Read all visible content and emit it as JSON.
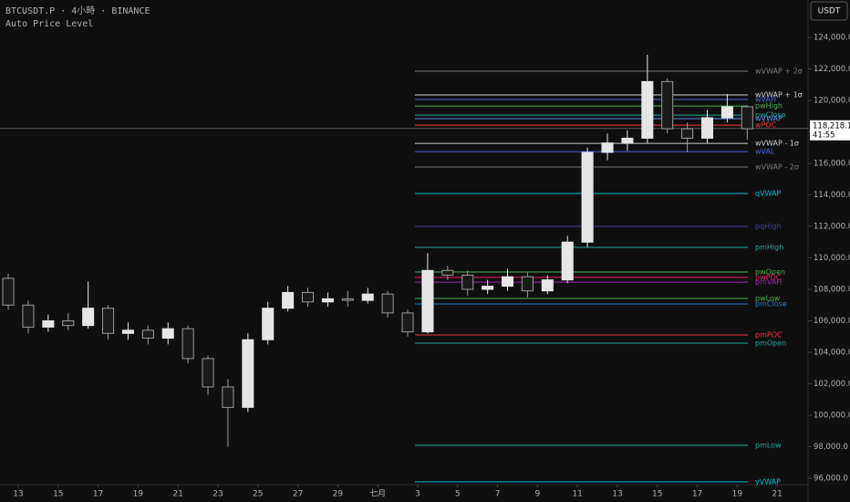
{
  "chart_data": {
    "type": "candlestick",
    "title": "BTCUSDT.P · 4小時 · BINANCE",
    "subtitle": "Auto Price Level",
    "currency": "USDT",
    "up_color": "#e6e6e6",
    "down_color": "#9a9a9a",
    "x": [
      -0.5,
      0.5,
      1.5,
      2.5,
      3.5,
      4.5,
      5.5,
      6.5,
      7.5,
      8.5,
      9.5,
      10.5,
      11.5,
      12.5,
      13.5,
      14.5,
      15.5,
      16.5,
      17.5,
      18.5,
      19.5,
      20.5,
      21.5,
      22.5,
      23.5,
      24.5,
      25.5,
      26.5,
      27.5,
      28.5,
      29.5,
      30.5,
      31.5,
      32.5,
      33.5,
      34.5,
      35.5,
      36.5
    ],
    "series": {
      "open": [
        108700,
        107000,
        105600,
        106000,
        105700,
        106800,
        105200,
        105400,
        104900,
        105500,
        103600,
        101800,
        100500,
        104800,
        106800,
        107800,
        107200,
        107400,
        107300,
        107700,
        106500,
        105300,
        109200,
        108900,
        108000,
        108200,
        108800,
        107900,
        108600,
        111000,
        116700,
        117300,
        117600,
        121200,
        118200,
        117600,
        118900,
        119600
      ],
      "high": [
        109000,
        107300,
        106400,
        106500,
        108500,
        107000,
        105900,
        105700,
        105900,
        105700,
        103800,
        102300,
        105200,
        107200,
        108200,
        108100,
        107800,
        107900,
        108100,
        107900,
        106700,
        110300,
        109500,
        109200,
        108600,
        109300,
        109100,
        108900,
        111400,
        117000,
        117900,
        118100,
        122900,
        121400,
        118600,
        119400,
        120400,
        119700
      ],
      "low": [
        106700,
        105200,
        105300,
        105400,
        105500,
        104800,
        104800,
        104500,
        104500,
        103300,
        101300,
        98000,
        100200,
        104500,
        106600,
        106900,
        106900,
        106900,
        107100,
        106200,
        105000,
        105200,
        108600,
        107600,
        107700,
        107900,
        107500,
        107700,
        108400,
        110700,
        116200,
        116800,
        117300,
        117900,
        116700,
        117300,
        118600,
        117500
      ],
      "close": [
        107000,
        105600,
        106000,
        105700,
        106800,
        105200,
        105400,
        104900,
        105500,
        103600,
        101800,
        100500,
        104800,
        106800,
        107800,
        107200,
        107400,
        107300,
        107700,
        106500,
        105300,
        109200,
        108900,
        108000,
        108200,
        108800,
        107900,
        108600,
        111000,
        116700,
        117300,
        117600,
        121200,
        118200,
        117600,
        118900,
        119600,
        118200
      ]
    },
    "levels": [
      {
        "name": "wVWAP + 2σ",
        "value": 121855,
        "color": "#7a7a7a"
      },
      {
        "name": "wVWAP + 1σ",
        "value": 120350,
        "color": "#d0d0d0"
      },
      {
        "name": "wVAH",
        "value": 120060,
        "color": "#4a64d8"
      },
      {
        "name": "pwHigh",
        "value": 119650,
        "color": "#4caf50"
      },
      {
        "name": "pwClose",
        "value": 119070,
        "color": "#26a69a"
      },
      {
        "name": "wVWAP",
        "value": 118840,
        "color": "#5b8def"
      },
      {
        "name": "wPOC",
        "value": 118430,
        "color": "#f23645"
      },
      {
        "name": "wVWAP - 1σ",
        "value": 117270,
        "color": "#d0d0d0"
      },
      {
        "name": "wVAL",
        "value": 116750,
        "color": "#4a64d8"
      },
      {
        "name": "wVWAP - 2σ",
        "value": 115770,
        "color": "#7a7a7a"
      },
      {
        "name": "qVWAP",
        "value": 114090,
        "color": "#00bcd4"
      },
      {
        "name": "pqHigh",
        "value": 112000,
        "color": "#3f3f9f"
      },
      {
        "name": "pmHigh",
        "value": 110670,
        "color": "#26a69a"
      },
      {
        "name": "pwOpen",
        "value": 109100,
        "color": "#4caf50"
      },
      {
        "name": "pwPOC",
        "value": 108760,
        "color": "#e91e63"
      },
      {
        "name": "pmVAH",
        "value": 108460,
        "color": "#9c27b0"
      },
      {
        "name": "pwLow",
        "value": 107420,
        "color": "#4caf50"
      },
      {
        "name": "pmClose",
        "value": 107070,
        "color": "#2979c9"
      },
      {
        "name": "pmPOC",
        "value": 105100,
        "color": "#f23645"
      },
      {
        "name": "pmOpen",
        "value": 104580,
        "color": "#26a69a"
      },
      {
        "name": "pmLow",
        "value": 98090,
        "color": "#26a69a"
      },
      {
        "name": "yVWAP",
        "value": 95770,
        "color": "#00bcd4"
      }
    ],
    "last_price": {
      "value": 118218.1,
      "label": "118,218.1",
      "countdown": "41:55"
    },
    "xlim": [
      -0.913,
      39.5
    ],
    "xticks": [
      {
        "value": 0,
        "label": "13"
      },
      {
        "value": 2,
        "label": "15"
      },
      {
        "value": 4,
        "label": "17"
      },
      {
        "value": 6,
        "label": "19"
      },
      {
        "value": 8,
        "label": "21"
      },
      {
        "value": 10,
        "label": "23"
      },
      {
        "value": 12,
        "label": "25"
      },
      {
        "value": 14,
        "label": "27"
      },
      {
        "value": 16,
        "label": "29"
      },
      {
        "value": 18,
        "label": "七月"
      },
      {
        "value": 20,
        "label": "3"
      },
      {
        "value": 22,
        "label": "5"
      },
      {
        "value": 24,
        "label": "7"
      },
      {
        "value": 26,
        "label": "9"
      },
      {
        "value": 28,
        "label": "11"
      },
      {
        "value": 30,
        "label": "13"
      },
      {
        "value": 32,
        "label": "15"
      },
      {
        "value": 34,
        "label": "17"
      },
      {
        "value": 36,
        "label": "19"
      },
      {
        "value": 38,
        "label": "21"
      }
    ],
    "ylim": [
      95650,
      126380
    ],
    "yticks": [
      {
        "value": 96000,
        "label": "96,000.0"
      },
      {
        "value": 98000,
        "label": "98,000.0"
      },
      {
        "value": 100000,
        "label": "100,000.0"
      },
      {
        "value": 102000,
        "label": "102,000.0"
      },
      {
        "value": 104000,
        "label": "104,000.0"
      },
      {
        "value": 106000,
        "label": "106,000.0"
      },
      {
        "value": 108000,
        "label": "108,000.0"
      },
      {
        "value": 110000,
        "label": "110,000.0"
      },
      {
        "value": 112000,
        "label": "112,000.0"
      },
      {
        "value": 114000,
        "label": "114,000.0"
      },
      {
        "value": 116000,
        "label": "116,000.0"
      },
      {
        "value": 118000,
        "label": "118,000.0"
      },
      {
        "value": 120000,
        "label": "120,000.0"
      },
      {
        "value": 122000,
        "label": "122,000.0"
      },
      {
        "value": 124000,
        "label": "124,000.0"
      }
    ]
  }
}
